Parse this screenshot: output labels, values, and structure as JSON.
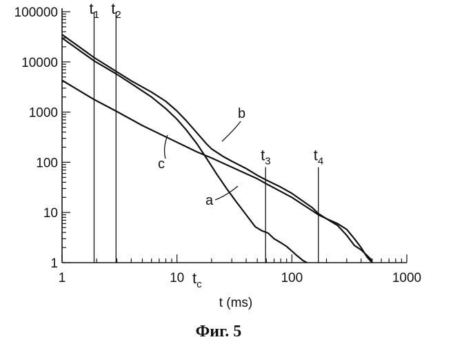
{
  "caption": "Фиг. 5",
  "chart_data": {
    "type": "line",
    "xscale": "log",
    "yscale": "log",
    "xlim": [
      1,
      1000
    ],
    "ylim": [
      1,
      100000
    ],
    "xlabel": "t (ms)",
    "ylabel": "",
    "grid": false,
    "x_ticks": [
      {
        "value": 1,
        "label": "1"
      },
      {
        "value": 10,
        "label": "10"
      },
      {
        "value": 100,
        "label": "100"
      },
      {
        "value": 1000,
        "label": "1000"
      }
    ],
    "y_ticks": [
      {
        "value": 1,
        "label": "1"
      },
      {
        "value": 10,
        "label": "10"
      },
      {
        "value": 100,
        "label": "100"
      },
      {
        "value": 1000,
        "label": "1000"
      },
      {
        "value": 10000,
        "label": "10000"
      },
      {
        "value": 100000,
        "label": "100000"
      }
    ],
    "markers": [
      {
        "label": "t",
        "sub": "1",
        "x": 1.9,
        "y_top": 100000
      },
      {
        "label": "t",
        "sub": "2",
        "x": 2.95,
        "y_top": 100000
      },
      {
        "label": "t",
        "sub": "3",
        "x": 59,
        "y_top": 80
      },
      {
        "label": "t",
        "sub": "4",
        "x": 170,
        "y_top": 80
      }
    ],
    "tc": {
      "label": "t",
      "sub": "c",
      "x": 15
    },
    "series": [
      {
        "name": "a",
        "x": [
          1,
          1.9,
          2.95,
          4,
          6,
          8,
          10,
          12,
          15,
          18,
          22,
          27,
          33,
          40,
          48,
          55,
          62,
          70,
          80,
          90,
          100,
          110,
          125,
          135
        ],
        "y": [
          30000,
          10500,
          5800,
          3700,
          2000,
          1170,
          720,
          445,
          230,
          122,
          60,
          30,
          16,
          9,
          5.2,
          4.3,
          3.9,
          3.0,
          2.5,
          2.1,
          1.7,
          1.4,
          1.1,
          1
        ]
      },
      {
        "name": "b",
        "x": [
          1,
          1.9,
          2.95,
          4,
          6,
          8,
          10,
          12,
          15,
          18,
          20,
          25,
          30,
          40,
          50,
          59,
          80,
          100,
          150,
          170,
          200,
          250,
          300,
          350,
          400,
          450,
          500
        ],
        "y": [
          35000,
          12200,
          6500,
          4200,
          2500,
          1640,
          1050,
          680,
          380,
          235,
          185,
          132,
          105,
          75,
          55,
          45,
          32,
          24,
          12.5,
          9.5,
          7.5,
          5.5,
          3.5,
          2.2,
          1.8,
          1.4,
          1.1
        ]
      },
      {
        "name": "c",
        "x": [
          1,
          1.9,
          2.95,
          5,
          10,
          15,
          20,
          30,
          50,
          59,
          100,
          170,
          200,
          250,
          300,
          350,
          400,
          450,
          500
        ],
        "y": [
          4300,
          1780,
          1050,
          540,
          250,
          160,
          122,
          80,
          47,
          38,
          20,
          9,
          7.5,
          6,
          4.6,
          3.0,
          2.0,
          1.3,
          1.0
        ]
      }
    ]
  }
}
